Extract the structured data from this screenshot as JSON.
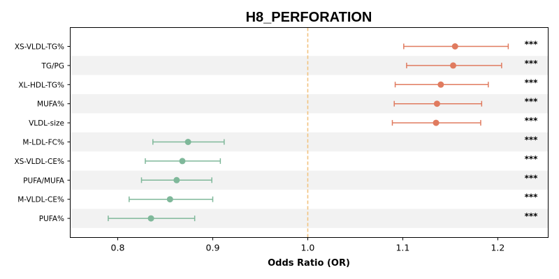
{
  "chart_data": {
    "type": "forest",
    "title": "H8_PERFORATION",
    "xlabel": "Odds Ratio (OR)",
    "ylabel": "",
    "xlim": [
      0.75,
      1.253
    ],
    "xticks": [
      0.8,
      0.9,
      1.0,
      1.1,
      1.2
    ],
    "xtick_labels": [
      "0.8",
      "0.9",
      "1.0",
      "1.1",
      "1.2"
    ],
    "reference_line": 1.0,
    "grid": false,
    "row_banding": true,
    "colors": {
      "increased": "#e07b5f",
      "decreased": "#7fb89a",
      "reference": "#f2c27e",
      "band": "#f2f2f2"
    },
    "rows": [
      {
        "label": "XS-VLDL-TG%",
        "or": 1.155,
        "lo": 1.101,
        "hi": 1.211,
        "sig": "***"
      },
      {
        "label": "TG/PG",
        "or": 1.153,
        "lo": 1.104,
        "hi": 1.204,
        "sig": "***"
      },
      {
        "label": "XL-HDL-TG%",
        "or": 1.14,
        "lo": 1.092,
        "hi": 1.19,
        "sig": "***"
      },
      {
        "label": "MUFA%",
        "or": 1.136,
        "lo": 1.091,
        "hi": 1.183,
        "sig": "***"
      },
      {
        "label": "VLDL-size",
        "or": 1.135,
        "lo": 1.089,
        "hi": 1.182,
        "sig": "***"
      },
      {
        "label": "M-LDL-FC%",
        "or": 0.874,
        "lo": 0.837,
        "hi": 0.912,
        "sig": "***"
      },
      {
        "label": "XS-VLDL-CE%",
        "or": 0.868,
        "lo": 0.829,
        "hi": 0.908,
        "sig": "***"
      },
      {
        "label": "PUFA/MUFA",
        "or": 0.862,
        "lo": 0.825,
        "hi": 0.899,
        "sig": "***"
      },
      {
        "label": "M-VLDL-CE%",
        "or": 0.855,
        "lo": 0.812,
        "hi": 0.9,
        "sig": "***"
      },
      {
        "label": "PUFA%",
        "or": 0.835,
        "lo": 0.79,
        "hi": 0.881,
        "sig": "***"
      }
    ]
  }
}
